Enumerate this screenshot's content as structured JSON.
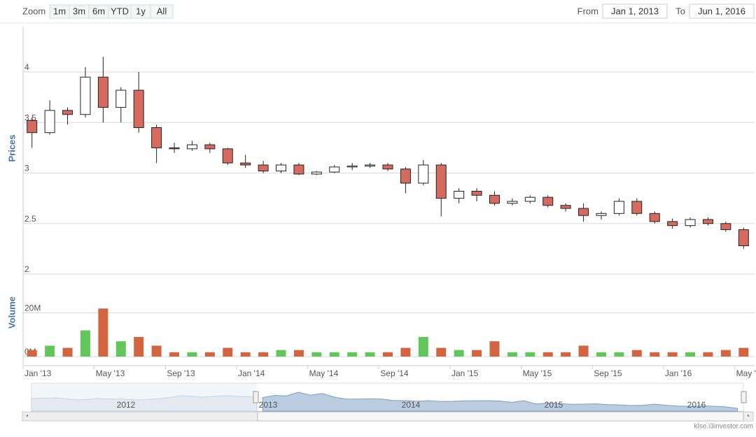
{
  "ui": {
    "zoom_label": "Zoom",
    "zoom_buttons": [
      "1m",
      "3m",
      "6m",
      "YTD",
      "1y",
      "All"
    ],
    "from_label": "From",
    "from_value": "Jan 1, 2013",
    "to_label": "To",
    "to_value": "Jun 1, 2016",
    "navigator_labels": [
      "2012",
      "2013",
      "2014",
      "2015",
      "2016"
    ],
    "credit": "klse.i3investor.com"
  },
  "chart_data": {
    "type": "candlestick",
    "y_label": "Prices",
    "y2_label": "Volume",
    "x": [
      "2013-01",
      "2013-02",
      "2013-03",
      "2013-04",
      "2013-05",
      "2013-06",
      "2013-07",
      "2013-08",
      "2013-09",
      "2013-10",
      "2013-11",
      "2013-12",
      "2014-01",
      "2014-02",
      "2014-03",
      "2014-04",
      "2014-05",
      "2014-06",
      "2014-07",
      "2014-08",
      "2014-09",
      "2014-10",
      "2014-11",
      "2014-12",
      "2015-01",
      "2015-02",
      "2015-03",
      "2015-04",
      "2015-05",
      "2015-06",
      "2015-07",
      "2015-08",
      "2015-09",
      "2015-10",
      "2015-11",
      "2015-12",
      "2016-01",
      "2016-02",
      "2016-03",
      "2016-04",
      "2016-05"
    ],
    "open": [
      3.52,
      3.4,
      3.62,
      3.58,
      3.95,
      3.65,
      3.82,
      3.45,
      3.25,
      3.24,
      3.28,
      3.24,
      3.1,
      3.08,
      3.02,
      3.08,
      2.99,
      3.01,
      3.06,
      3.07,
      3.08,
      3.04,
      2.9,
      3.08,
      2.75,
      2.82,
      2.78,
      2.7,
      2.72,
      2.76,
      2.68,
      2.65,
      2.58,
      2.6,
      2.72,
      2.6,
      2.52,
      2.48,
      2.54,
      2.5,
      2.44
    ],
    "high": [
      3.55,
      3.72,
      3.65,
      4.05,
      4.15,
      3.85,
      4.0,
      3.48,
      3.3,
      3.32,
      3.3,
      3.25,
      3.18,
      3.12,
      3.1,
      3.1,
      3.02,
      3.08,
      3.1,
      3.1,
      3.1,
      3.06,
      3.13,
      3.1,
      2.85,
      2.85,
      2.82,
      2.75,
      2.78,
      2.78,
      2.7,
      2.7,
      2.62,
      2.75,
      2.75,
      2.62,
      2.55,
      2.56,
      2.56,
      2.52,
      2.46
    ],
    "low": [
      3.25,
      3.38,
      3.48,
      3.55,
      3.5,
      3.5,
      3.4,
      3.1,
      3.2,
      3.22,
      3.2,
      3.08,
      3.05,
      3.0,
      3.0,
      2.98,
      2.98,
      3.0,
      3.03,
      3.05,
      3.02,
      2.8,
      2.88,
      2.57,
      2.7,
      2.72,
      2.68,
      2.68,
      2.7,
      2.66,
      2.62,
      2.52,
      2.54,
      2.58,
      2.58,
      2.5,
      2.45,
      2.46,
      2.48,
      2.42,
      2.25
    ],
    "close": [
      3.4,
      3.62,
      3.58,
      3.95,
      3.65,
      3.82,
      3.45,
      3.25,
      3.24,
      3.28,
      3.24,
      3.1,
      3.08,
      3.02,
      3.08,
      2.99,
      3.01,
      3.06,
      3.07,
      3.08,
      3.04,
      2.9,
      3.08,
      2.75,
      2.82,
      2.78,
      2.7,
      2.72,
      2.76,
      2.68,
      2.65,
      2.58,
      2.6,
      2.72,
      2.6,
      2.52,
      2.48,
      2.54,
      2.5,
      2.44,
      2.28
    ],
    "volume": [
      3000000,
      5000000,
      4000000,
      12000000,
      22000000,
      7000000,
      9000000,
      5000000,
      2000000,
      2000000,
      2000000,
      4000000,
      2000000,
      2000000,
      3000000,
      3000000,
      2000000,
      2000000,
      2000000,
      2000000,
      2000000,
      4000000,
      9000000,
      4000000,
      3000000,
      3000000,
      7000000,
      2000000,
      2000000,
      2000000,
      2000000,
      5000000,
      2000000,
      2000000,
      3000000,
      2000000,
      2000000,
      2000000,
      2000000,
      3000000,
      4000000
    ],
    "up_color": "#ffffff",
    "down_color": "#d66a5e",
    "volume_up_color": "#62c75a",
    "volume_down_color": "#d2643f",
    "xlim": [
      "2013-01",
      "2016-06"
    ],
    "xticks": [
      {
        "value": "2013-01",
        "label": "Jan '13"
      },
      {
        "value": "2013-05",
        "label": "May '13"
      },
      {
        "value": "2013-09",
        "label": "Sep '13"
      },
      {
        "value": "2014-01",
        "label": "Jan '14"
      },
      {
        "value": "2014-05",
        "label": "May '14"
      },
      {
        "value": "2014-09",
        "label": "Sep '14"
      },
      {
        "value": "2015-01",
        "label": "Jan '15"
      },
      {
        "value": "2015-05",
        "label": "May '15"
      },
      {
        "value": "2015-09",
        "label": "Sep '15"
      },
      {
        "value": "2016-01",
        "label": "Jan '16"
      },
      {
        "value": "2016-05",
        "label": "May '16"
      }
    ],
    "ylim": [
      2,
      4.45
    ],
    "yticks": [
      2,
      2.5,
      3,
      3.5,
      4
    ],
    "y2lim": [
      0,
      32000000
    ],
    "y2ticks": [
      {
        "value": 0,
        "label": "0M"
      },
      {
        "value": 20000000,
        "label": "20M"
      }
    ],
    "grid": true
  }
}
